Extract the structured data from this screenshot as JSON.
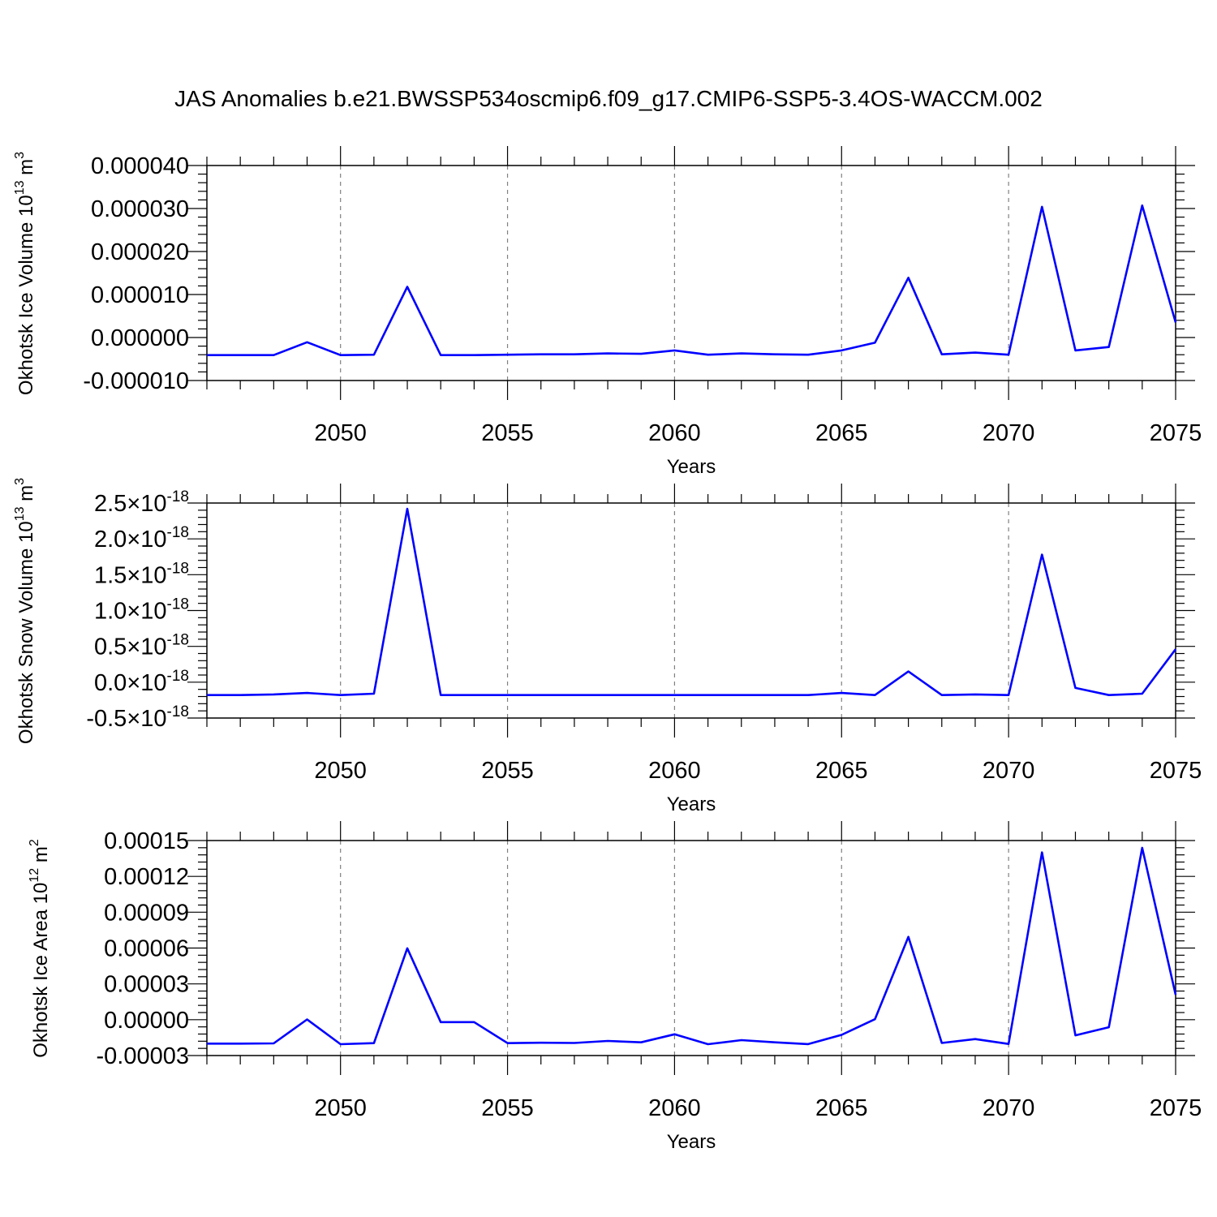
{
  "title": "JAS Anomalies b.e21.BWSSP534oscmip6.f09_g17.CMIP6-SSP5-3.4OS-WACCM.002",
  "colors": {
    "series": "#0000ff",
    "grid": "#808080",
    "frame": "#000000"
  },
  "chart_data": [
    {
      "type": "line",
      "ylabel": {
        "main": "Okhotsk Ice Volume 10",
        "exp": "13",
        "unit": " m",
        "unit_exp": "3"
      },
      "xlabel": "Years",
      "xlim": [
        2046,
        2075
      ],
      "ylim": [
        -1e-05,
        4e-05
      ],
      "x_tick_labels": [
        "2050",
        "2055",
        "2060",
        "2065",
        "2070",
        "2075"
      ],
      "y_ticks": [
        -1e-05,
        0,
        1e-05,
        2e-05,
        3e-05,
        4e-05
      ],
      "y_tick_labels": [
        "-0.000010",
        "0.000000",
        "0.000010",
        "0.000020",
        "0.000030",
        "0.000040"
      ],
      "grid": "vertical dashed at major x ticks",
      "series": [
        {
          "x": [
            2046,
            2047,
            2048,
            2049,
            2050,
            2051,
            2052,
            2053,
            2054,
            2055,
            2056,
            2057,
            2058,
            2059,
            2060,
            2061,
            2062,
            2063,
            2064,
            2065,
            2066,
            2067,
            2068,
            2069,
            2070,
            2071,
            2072,
            2073,
            2074,
            2075
          ],
          "values": [
            -4.1e-06,
            -4.1e-06,
            -4.1e-06,
            -1.1e-06,
            -4.1e-06,
            -4e-06,
            1.18e-05,
            -4.1e-06,
            -4.1e-06,
            -4e-06,
            -3.9e-06,
            -3.9e-06,
            -3.7e-06,
            -3.8e-06,
            -3e-06,
            -4e-06,
            -3.7e-06,
            -3.9e-06,
            -4e-06,
            -3e-06,
            -1.2e-06,
            1.39e-05,
            -3.9e-06,
            -3.5e-06,
            -4e-06,
            3.04e-05,
            -3e-06,
            -2.2e-06,
            3.07e-05,
            3.5e-06
          ]
        }
      ]
    },
    {
      "type": "line",
      "ylabel": {
        "main": "Okhotsk Snow Volume 10",
        "exp": "13",
        "unit": " m",
        "unit_exp": "3"
      },
      "xlabel": "Years",
      "xlim": [
        2046,
        2075
      ],
      "ylim": [
        -0.5,
        2.5
      ],
      "y_unit_note": "values in units of 10^-18",
      "x_tick_labels": [
        "2050",
        "2055",
        "2060",
        "2065",
        "2070",
        "2075"
      ],
      "y_ticks": [
        -0.5,
        0,
        0.5,
        1,
        1.5,
        2,
        2.5
      ],
      "y_tick_labels": [
        "-0.5",
        "0.0",
        "0.5",
        "1.0",
        "1.5",
        "2.0",
        "2.5"
      ],
      "y_tick_suffix": {
        "times": "×10",
        "exp": "-18"
      },
      "grid": "vertical dashed at major x ticks",
      "series": [
        {
          "x": [
            2046,
            2047,
            2048,
            2049,
            2050,
            2051,
            2052,
            2053,
            2054,
            2055,
            2056,
            2057,
            2058,
            2059,
            2060,
            2061,
            2062,
            2063,
            2064,
            2065,
            2066,
            2067,
            2068,
            2069,
            2070,
            2071,
            2072,
            2073,
            2074,
            2075
          ],
          "values": [
            -0.18,
            -0.18,
            -0.17,
            -0.15,
            -0.18,
            -0.16,
            2.42,
            -0.18,
            -0.18,
            -0.18,
            -0.18,
            -0.18,
            -0.18,
            -0.18,
            -0.18,
            -0.18,
            -0.18,
            -0.18,
            -0.18,
            -0.15,
            -0.18,
            0.15,
            -0.18,
            -0.17,
            -0.18,
            1.78,
            -0.08,
            -0.18,
            -0.16,
            0.46
          ]
        }
      ]
    },
    {
      "type": "line",
      "ylabel": {
        "main": "Okhotsk Ice Area 10",
        "exp": "12",
        "unit": " m",
        "unit_exp": "2"
      },
      "xlabel": "Years",
      "xlim": [
        2046,
        2075
      ],
      "ylim": [
        -3e-05,
        0.00015
      ],
      "x_tick_labels": [
        "2050",
        "2055",
        "2060",
        "2065",
        "2070",
        "2075"
      ],
      "y_ticks": [
        -3e-05,
        0,
        3e-05,
        6e-05,
        9e-05,
        0.00012,
        0.00015
      ],
      "y_tick_labels": [
        "-0.00003",
        "0.00000",
        "0.00003",
        "0.00006",
        "0.00009",
        "0.00012",
        "0.00015"
      ],
      "grid": "vertical dashed at major x ticks",
      "series": [
        {
          "x": [
            2046,
            2047,
            2048,
            2049,
            2050,
            2051,
            2052,
            2053,
            2054,
            2055,
            2056,
            2057,
            2058,
            2059,
            2060,
            2061,
            2062,
            2063,
            2064,
            2065,
            2066,
            2067,
            2068,
            2069,
            2070,
            2071,
            2072,
            2073,
            2074,
            2075
          ],
          "values": [
            -2e-05,
            -2e-05,
            -1.98e-05,
            2e-07,
            -2.05e-05,
            -1.96e-05,
            5.98e-05,
            -2e-06,
            -2e-06,
            -1.96e-05,
            -1.93e-05,
            -1.95e-05,
            -1.78e-05,
            -1.89e-05,
            -1.22e-05,
            -2.05e-05,
            -1.71e-05,
            -1.89e-05,
            -2.04e-05,
            -1.27e-05,
            4e-07,
            6.94e-05,
            -1.95e-05,
            -1.62e-05,
            -2.03e-05,
            0.0001401,
            -1.31e-05,
            -6.3e-06,
            0.0001439,
            2.09e-05
          ]
        }
      ]
    }
  ]
}
